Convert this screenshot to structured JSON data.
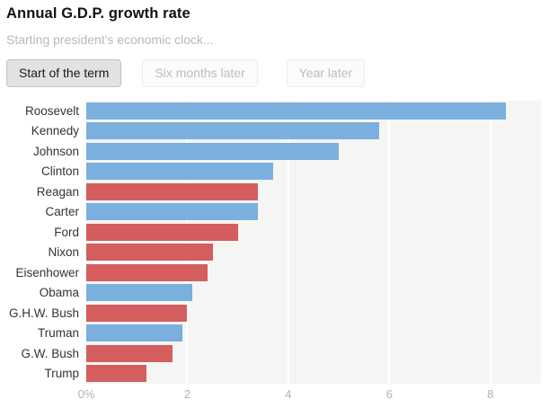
{
  "header": {
    "title": "Annual G.D.P. growth rate",
    "subtitle": "Starting president's economic clock..."
  },
  "buttons": [
    {
      "label": "Start of the term",
      "active": true
    },
    {
      "label": "Six months later",
      "active": false
    },
    {
      "label": "Year later",
      "active": false
    }
  ],
  "chart_data": {
    "type": "bar",
    "orientation": "horizontal",
    "title": "Annual G.D.P. growth rate",
    "xlabel": "",
    "ylabel": "",
    "xlim": [
      0,
      9
    ],
    "xticks": [
      {
        "value": 0,
        "label": "0%"
      },
      {
        "value": 2,
        "label": "2"
      },
      {
        "value": 4,
        "label": "4"
      },
      {
        "value": 6,
        "label": "6"
      },
      {
        "value": 8,
        "label": "8"
      }
    ],
    "gridlines": [
      2,
      4,
      6,
      8
    ],
    "grid": "on",
    "legend": "none",
    "colors": {
      "democrat": "#7bafdd",
      "republican": "#d45d5e",
      "plot_background": "#f5f5f4",
      "gridline": "#ffffff"
    },
    "categories": [
      "Roosevelt",
      "Kennedy",
      "Johnson",
      "Clinton",
      "Reagan",
      "Carter",
      "Ford",
      "Nixon",
      "Eisenhower",
      "Obama",
      "G.H.W. Bush",
      "Truman",
      "G.W. Bush",
      "Trump"
    ],
    "values": [
      8.3,
      5.8,
      5.0,
      3.7,
      3.4,
      3.4,
      3.0,
      2.5,
      2.4,
      2.1,
      2.0,
      1.9,
      1.7,
      1.2
    ],
    "presidents": [
      {
        "name": "Roosevelt",
        "party": "democrat",
        "value": 8.3
      },
      {
        "name": "Kennedy",
        "party": "democrat",
        "value": 5.8
      },
      {
        "name": "Johnson",
        "party": "democrat",
        "value": 5.0
      },
      {
        "name": "Clinton",
        "party": "democrat",
        "value": 3.7
      },
      {
        "name": "Reagan",
        "party": "republican",
        "value": 3.4
      },
      {
        "name": "Carter",
        "party": "democrat",
        "value": 3.4
      },
      {
        "name": "Ford",
        "party": "republican",
        "value": 3.0
      },
      {
        "name": "Nixon",
        "party": "republican",
        "value": 2.5
      },
      {
        "name": "Eisenhower",
        "party": "republican",
        "value": 2.4
      },
      {
        "name": "Obama",
        "party": "democrat",
        "value": 2.1
      },
      {
        "name": "G.H.W. Bush",
        "party": "republican",
        "value": 2.0
      },
      {
        "name": "Truman",
        "party": "democrat",
        "value": 1.9
      },
      {
        "name": "G.W. Bush",
        "party": "republican",
        "value": 1.7
      },
      {
        "name": "Trump",
        "party": "republican",
        "value": 1.2
      }
    ]
  }
}
